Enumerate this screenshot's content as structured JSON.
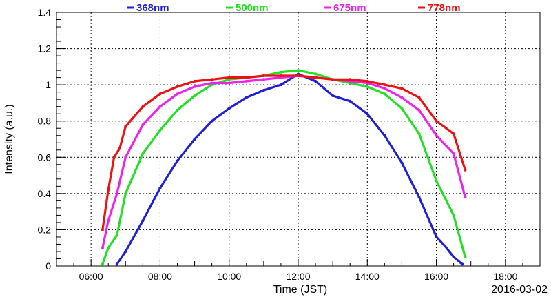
{
  "chart_data": {
    "type": "scatter",
    "title": "",
    "xlabel": "Time (JST)",
    "ylabel": "Intensity (a.u.)",
    "date_label": "2016-03-02",
    "xlim": [
      5,
      19
    ],
    "ylim": [
      0,
      1.4
    ],
    "x_ticks": [
      "06:00",
      "08:00",
      "10:00",
      "12:00",
      "14:00",
      "16:00",
      "18:00"
    ],
    "y_ticks": [
      "0",
      "0.2",
      "0.4",
      "0.6",
      "0.8",
      "1",
      "1.2",
      "1.4"
    ],
    "grid": true,
    "legend_position": "top",
    "series": [
      {
        "name": "368nm",
        "color": "#1f1fd6",
        "x": [
          "06:45",
          "07:00",
          "07:30",
          "08:00",
          "08:30",
          "09:00",
          "09:30",
          "10:00",
          "10:30",
          "11:00",
          "11:30",
          "12:00",
          "12:30",
          "13:00",
          "13:30",
          "14:00",
          "14:30",
          "15:00",
          "15:30",
          "16:00",
          "16:15",
          "16:30",
          "16:45"
        ],
        "y": [
          0.01,
          0.08,
          0.25,
          0.43,
          0.58,
          0.7,
          0.8,
          0.87,
          0.93,
          0.97,
          1.0,
          1.06,
          1.02,
          0.94,
          0.91,
          0.84,
          0.72,
          0.57,
          0.38,
          0.16,
          0.11,
          0.05,
          0.01
        ]
      },
      {
        "name": "500nm",
        "color": "#22e022",
        "x": [
          "06:20",
          "06:30",
          "06:45",
          "07:00",
          "07:30",
          "08:00",
          "08:30",
          "09:00",
          "09:30",
          "10:00",
          "10:30",
          "11:00",
          "11:30",
          "12:00",
          "12:30",
          "13:00",
          "13:30",
          "14:00",
          "14:30",
          "15:00",
          "15:30",
          "16:00",
          "16:30",
          "16:50"
        ],
        "y": [
          0.01,
          0.1,
          0.17,
          0.4,
          0.62,
          0.75,
          0.86,
          0.94,
          1.0,
          1.03,
          1.04,
          1.05,
          1.07,
          1.08,
          1.06,
          1.03,
          1.01,
          0.99,
          0.95,
          0.87,
          0.73,
          0.47,
          0.28,
          0.05
        ]
      },
      {
        "name": "675nm",
        "color": "#ee22ee",
        "x": [
          "06:20",
          "06:30",
          "06:45",
          "07:00",
          "07:30",
          "08:00",
          "08:30",
          "09:00",
          "09:30",
          "10:00",
          "10:30",
          "11:00",
          "11:30",
          "12:00",
          "12:30",
          "13:00",
          "13:30",
          "14:00",
          "14:30",
          "15:00",
          "15:30",
          "16:00",
          "16:30",
          "16:50"
        ],
        "y": [
          0.1,
          0.25,
          0.4,
          0.6,
          0.78,
          0.88,
          0.95,
          0.99,
          1.01,
          1.01,
          1.02,
          1.03,
          1.04,
          1.05,
          1.04,
          1.03,
          1.02,
          1.01,
          0.98,
          0.93,
          0.86,
          0.72,
          0.62,
          0.38
        ]
      },
      {
        "name": "778nm",
        "color": "#ee1111",
        "x": [
          "06:20",
          "06:30",
          "06:40",
          "06:50",
          "07:00",
          "07:30",
          "08:00",
          "08:30",
          "09:00",
          "09:30",
          "10:00",
          "10:30",
          "11:00",
          "11:30",
          "12:00",
          "12:30",
          "13:00",
          "13:30",
          "14:00",
          "14:30",
          "15:00",
          "15:30",
          "16:00",
          "16:30",
          "16:50"
        ],
        "y": [
          0.2,
          0.42,
          0.6,
          0.65,
          0.77,
          0.88,
          0.95,
          0.99,
          1.02,
          1.03,
          1.04,
          1.04,
          1.05,
          1.05,
          1.05,
          1.04,
          1.03,
          1.03,
          1.02,
          1.0,
          0.98,
          0.93,
          0.8,
          0.73,
          0.53
        ]
      }
    ]
  }
}
